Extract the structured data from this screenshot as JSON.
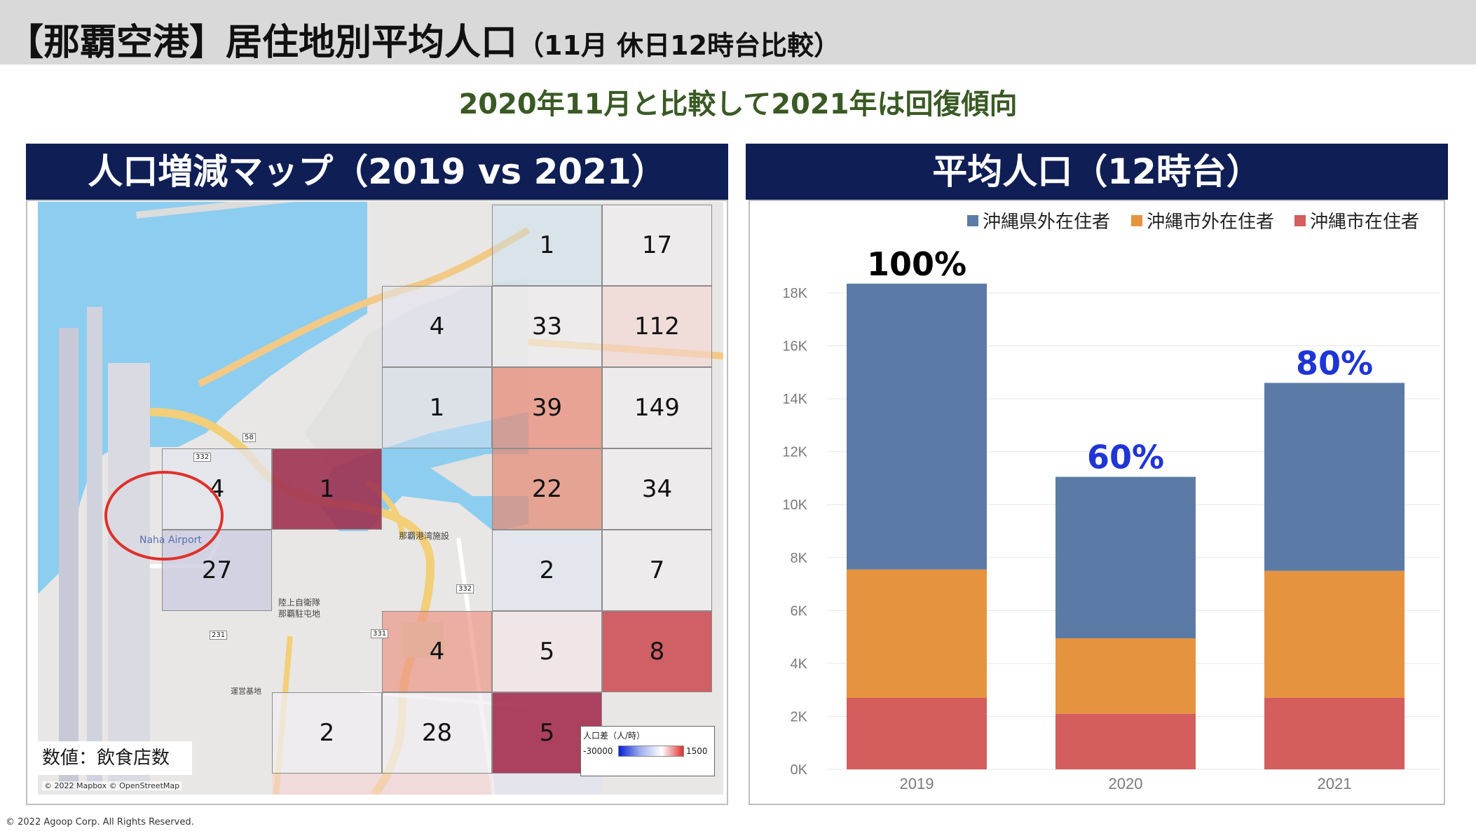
{
  "header": {
    "title": "【那覇空港】居住地別平均人口",
    "subtitle": "（11月 休日12時台比較）"
  },
  "headline": "2020年11月と比較して2021年は回復傾向",
  "map_panel": {
    "title": "人口増減マップ（2019 vs 2021）",
    "note": "数値：飲食店数",
    "map_credit": "© 2022 Mapbox © OpenStreetMap",
    "airport_label": "Naha Airport",
    "labels": {
      "port": "那覇港湾施設",
      "jsdf": "陸上自衛隊",
      "jsdf2": "那覇駐屯地",
      "base": "運営基地"
    },
    "road_numbers": [
      "58",
      "332",
      "231",
      "332",
      "331"
    ],
    "legend": {
      "title": "人口差（人/時）",
      "min": "-30000",
      "max": "1500"
    },
    "colors": {
      "dark_red": "#a63a56",
      "light_red": "#e89386",
      "blue_tint": "#d4d9ec"
    },
    "cells": [
      {
        "id": "c1",
        "value": "1",
        "tone": "light-blue"
      },
      {
        "id": "c2",
        "value": "17",
        "tone": "neutral"
      },
      {
        "id": "c3",
        "value": "4",
        "tone": "neutral"
      },
      {
        "id": "c4",
        "value": "33",
        "tone": "neutral"
      },
      {
        "id": "c5",
        "value": "112",
        "tone": "pale-red"
      },
      {
        "id": "c6",
        "value": "1",
        "tone": "light-blue"
      },
      {
        "id": "c7",
        "value": "39",
        "tone": "red"
      },
      {
        "id": "c8",
        "value": "149",
        "tone": "neutral"
      },
      {
        "id": "c9",
        "value": "4",
        "tone": "grey-blue"
      },
      {
        "id": "c10",
        "value": "1",
        "tone": "dark-red"
      },
      {
        "id": "c11",
        "value": "22",
        "tone": "red"
      },
      {
        "id": "c12",
        "value": "34",
        "tone": "neutral"
      },
      {
        "id": "c13",
        "value": "27",
        "tone": "grey-blue"
      },
      {
        "id": "c14",
        "value": "2",
        "tone": "light-blue"
      },
      {
        "id": "c15",
        "value": "7",
        "tone": "neutral"
      },
      {
        "id": "c16",
        "value": "4",
        "tone": "salmon"
      },
      {
        "id": "c17",
        "value": "5",
        "tone": "pale-red"
      },
      {
        "id": "c18",
        "value": "8",
        "tone": "red-strong"
      },
      {
        "id": "c19",
        "value": "2",
        "tone": "neutral"
      },
      {
        "id": "c20",
        "value": "28",
        "tone": "neutral"
      },
      {
        "id": "c21",
        "value": "5",
        "tone": "dark-red"
      }
    ]
  },
  "chart_panel": {
    "title": "平均人口（12時台）"
  },
  "chart_data": {
    "type": "bar",
    "stacked": true,
    "categories": [
      "2019",
      "2020",
      "2021"
    ],
    "series": [
      {
        "name": "沖縄市在住者",
        "color": "#d45d5d",
        "values": [
          2700,
          2100,
          2700
        ]
      },
      {
        "name": "沖縄市外在住者",
        "color": "#e69340",
        "values": [
          4850,
          2850,
          4800
        ]
      },
      {
        "name": "沖縄県外在住者",
        "color": "#5b7ba6",
        "values": [
          10800,
          6100,
          7100
        ]
      }
    ],
    "legend_order": [
      "沖縄県外在住者",
      "沖縄市外在住者",
      "沖縄市在住者"
    ],
    "totals": [
      18350,
      11050,
      14600
    ],
    "bar_labels": [
      {
        "text": "100%",
        "color": "#000000"
      },
      {
        "text": "60%",
        "color": "#1f35d6"
      },
      {
        "text": "80%",
        "color": "#1f35d6"
      }
    ],
    "y_ticks": [
      "0K",
      "2K",
      "4K",
      "6K",
      "8K",
      "10K",
      "12K",
      "14K",
      "16K",
      "18K"
    ],
    "ylim": [
      0,
      18000
    ],
    "grid": true,
    "legend_position": "top-right"
  },
  "footer": "© 2022 Agoop Corp. All Rights Reserved."
}
